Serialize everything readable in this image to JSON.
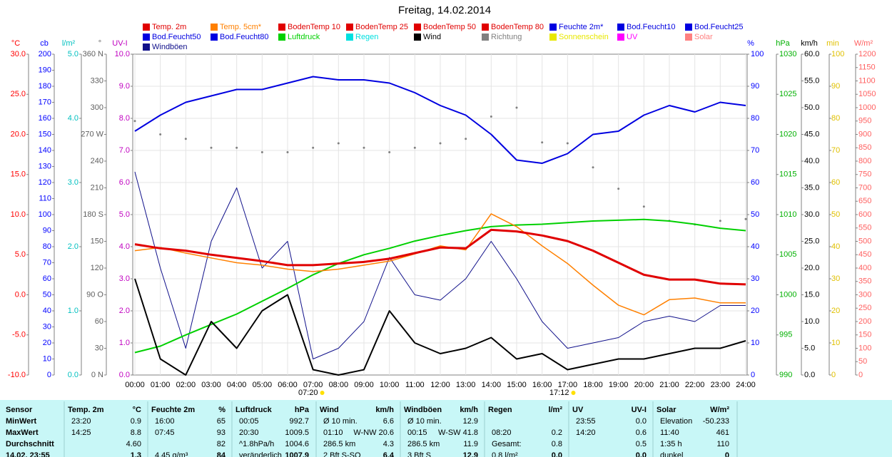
{
  "chart_data": {
    "type": "line",
    "title": "Freitag, 14.02.2014",
    "categories": [
      "00:00",
      "01:00",
      "02:00",
      "03:00",
      "04:00",
      "05:00",
      "06:00",
      "07:00",
      "08:00",
      "09:00",
      "10:00",
      "11:00",
      "12:00",
      "13:00",
      "14:00",
      "15:00",
      "16:00",
      "17:00",
      "18:00",
      "19:00",
      "20:00",
      "21:00",
      "22:00",
      "23:00",
      "24:00"
    ],
    "annotations": [
      "07:20",
      "17:12"
    ],
    "grid": true,
    "axes": [
      {
        "label": "°C",
        "side": "left",
        "color": "#ff0000",
        "ylim": [
          -10,
          30
        ],
        "yticks": [
          {
            "value": -10,
            "label": "-10.0"
          },
          {
            "value": -5,
            "label": "-5.0"
          },
          {
            "value": 0,
            "label": "0.0"
          },
          {
            "value": 5,
            "label": "5.0"
          },
          {
            "value": 10,
            "label": "10.0"
          },
          {
            "value": 15,
            "label": "15.0"
          },
          {
            "value": 20,
            "label": "20.0"
          },
          {
            "value": 25,
            "label": "25.0"
          },
          {
            "value": 30,
            "label": "30.0"
          }
        ]
      },
      {
        "label": "cb",
        "side": "left",
        "color": "#0000ff",
        "ylim": [
          0,
          200
        ],
        "yticks": [
          0,
          10,
          20,
          30,
          40,
          50,
          60,
          70,
          80,
          90,
          100,
          110,
          120,
          130,
          140,
          150,
          160,
          170,
          180,
          190,
          200
        ]
      },
      {
        "label": "l/m²",
        "side": "left",
        "color": "#00c0c0",
        "ylim": [
          0,
          5
        ],
        "yticks": [
          {
            "value": 0,
            "label": "0.0"
          },
          {
            "value": 1,
            "label": "1.0"
          },
          {
            "value": 2,
            "label": "2.0"
          },
          {
            "value": 3,
            "label": "3.0"
          },
          {
            "value": 4,
            "label": "4.0"
          },
          {
            "value": 5,
            "label": "5.0"
          }
        ]
      },
      {
        "label": "°",
        "side": "left",
        "color": "#606060",
        "ylim": [
          0,
          360
        ],
        "yticks": [
          {
            "value": 0,
            "label": "0 N"
          },
          30,
          60,
          {
            "value": 90,
            "label": "90 O"
          },
          120,
          150,
          {
            "value": 180,
            "label": "180 S"
          },
          210,
          240,
          {
            "value": 270,
            "label": "270 W"
          },
          300,
          330,
          {
            "value": 360,
            "label": "360 N"
          }
        ]
      },
      {
        "label": "UV-I",
        "side": "left",
        "color": "#c000c0",
        "ylim": [
          0,
          10
        ],
        "yticks": [
          {
            "value": 0,
            "label": "0.0"
          },
          {
            "value": 1,
            "label": "1.0"
          },
          {
            "value": 2,
            "label": "2.0"
          },
          {
            "value": 3,
            "label": "3.0"
          },
          {
            "value": 4,
            "label": "4.0"
          },
          {
            "value": 5,
            "label": "5.0"
          },
          {
            "value": 6,
            "label": "6.0"
          },
          {
            "value": 7,
            "label": "7.0"
          },
          {
            "value": 8,
            "label": "8.0"
          },
          {
            "value": 9,
            "label": "9.0"
          },
          {
            "value": 10,
            "label": "10.0"
          }
        ]
      },
      {
        "label": "%",
        "side": "right",
        "color": "#0000ff",
        "ylim": [
          0,
          100
        ],
        "yticks": [
          0,
          10,
          20,
          30,
          40,
          50,
          60,
          70,
          80,
          90,
          100
        ]
      },
      {
        "label": "hPa",
        "side": "right",
        "color": "#00b000",
        "ylim": [
          990,
          1030
        ],
        "yticks": [
          990,
          995,
          1000,
          1005,
          1010,
          1015,
          1020,
          1025,
          1030
        ]
      },
      {
        "label": "km/h",
        "side": "right",
        "color": "#000000",
        "ylim": [
          0,
          60
        ],
        "yticks": [
          {
            "value": 0,
            "label": "0.0"
          },
          {
            "value": 5,
            "label": "5.0"
          },
          {
            "value": 10,
            "label": "10.0"
          },
          {
            "value": 15,
            "label": "15.0"
          },
          {
            "value": 20,
            "label": "20.0"
          },
          {
            "value": 25,
            "label": "25.0"
          },
          {
            "value": 30,
            "label": "30.0"
          },
          {
            "value": 35,
            "label": "35.0"
          },
          {
            "value": 40,
            "label": "40.0"
          },
          {
            "value": 45,
            "label": "45.0"
          },
          {
            "value": 50,
            "label": "50.0"
          },
          {
            "value": 55,
            "label": "55.0"
          },
          {
            "value": 60,
            "label": "60.0"
          }
        ]
      },
      {
        "label": "min",
        "side": "right",
        "color": "#e0c000",
        "ylim": [
          0,
          100
        ],
        "yticks": [
          0,
          10,
          20,
          30,
          40,
          50,
          60,
          70,
          80,
          90,
          100
        ]
      },
      {
        "label": "W/m²",
        "side": "right",
        "color": "#ff6060",
        "ylim": [
          0,
          1200
        ],
        "yticks": [
          0,
          50,
          100,
          150,
          200,
          250,
          300,
          350,
          400,
          450,
          500,
          550,
          600,
          650,
          700,
          750,
          800,
          850,
          900,
          950,
          1000,
          1050,
          1100,
          1150,
          1200
        ]
      }
    ],
    "series": [
      {
        "name": "Temp. 2m",
        "color": "#e00000",
        "axis": "°C",
        "values": [
          6.3,
          5.8,
          5.5,
          5.0,
          4.6,
          4.2,
          3.7,
          3.7,
          3.9,
          4.1,
          4.5,
          5.2,
          5.9,
          5.8,
          8.1,
          7.9,
          7.4,
          6.7,
          5.5,
          4.0,
          2.5,
          1.9,
          1.9,
          1.4,
          1.3
        ]
      },
      {
        "name": "Temp. 5cm*",
        "color": "#ff8000",
        "axis": "°C",
        "values": [
          5.5,
          5.9,
          5.2,
          4.6,
          4.0,
          3.7,
          3.2,
          2.9,
          3.2,
          3.7,
          4.2,
          5.1,
          6.1,
          5.6,
          10.1,
          8.5,
          6.1,
          3.9,
          1.2,
          -1.3,
          -2.5,
          -0.6,
          -0.4,
          -1.0,
          -1.0
        ]
      },
      {
        "name": "BodenTemp 10",
        "color": "#e00000"
      },
      {
        "name": "BodenTemp 25",
        "color": "#e00000"
      },
      {
        "name": "BodenTemp 50",
        "color": "#e00000"
      },
      {
        "name": "BodenTemp 80",
        "color": "#e00000"
      },
      {
        "name": "Feuchte 2m*",
        "color": "#0000e0",
        "axis": "%",
        "values": [
          76,
          81,
          85,
          87,
          89,
          89,
          91,
          93,
          92,
          92,
          91,
          88,
          84,
          81,
          75,
          67,
          66,
          69,
          75,
          76,
          81,
          84,
          82,
          85,
          84
        ]
      },
      {
        "name": "Bod.Feucht10",
        "color": "#0000e0"
      },
      {
        "name": "Bod.Feucht25",
        "color": "#0000e0"
      },
      {
        "name": "Bod.Feucht50",
        "color": "#0000e0"
      },
      {
        "name": "Bod.Feucht80",
        "color": "#0000e0"
      },
      {
        "name": "Luftdruck",
        "color": "#00d000",
        "axis": "hPa",
        "values": [
          992.8,
          993.6,
          995.0,
          996.3,
          997.6,
          999.2,
          1000.8,
          1002.5,
          1003.9,
          1005.0,
          1005.8,
          1006.7,
          1007.4,
          1008.0,
          1008.5,
          1008.7,
          1008.8,
          1009.0,
          1009.2,
          1009.3,
          1009.4,
          1009.2,
          1008.8,
          1008.3,
          1008.0
        ]
      },
      {
        "name": "Regen",
        "color": "#00e0e0"
      },
      {
        "name": "Wind",
        "color": "#000000",
        "axis": "km/h",
        "values": [
          18,
          3,
          0,
          10,
          5,
          12,
          15,
          1,
          0,
          1,
          12,
          6,
          4,
          5,
          7,
          3,
          4,
          1,
          2,
          3,
          3,
          4,
          5,
          5,
          6.4
        ]
      },
      {
        "name": "Richtung",
        "color": "#808080",
        "axis": "°",
        "style": "dots",
        "values": [
          285,
          270,
          265,
          255,
          255,
          250,
          250,
          255,
          260,
          255,
          250,
          255,
          260,
          265,
          290,
          300,
          261,
          260,
          233,
          209,
          189,
          173,
          169,
          173,
          175
        ]
      },
      {
        "name": "Sonnenschein",
        "color": "#e8e800"
      },
      {
        "name": "UV",
        "color": "#ff00ff"
      },
      {
        "name": "Solar",
        "color": "#ff8080"
      },
      {
        "name": "Windböen",
        "color": "#10108a",
        "axis": "km/h",
        "values": [
          38,
          20,
          5,
          25,
          35,
          20,
          25,
          3,
          5,
          10,
          22,
          15,
          14,
          18,
          25,
          18,
          10,
          5,
          6,
          7,
          10,
          11,
          10,
          13,
          13
        ]
      }
    ]
  },
  "table": {
    "header": [
      "Sensor",
      "Temp. 2m",
      "°C",
      "Feuchte 2m",
      "%",
      "Luftdruck",
      "hPa",
      "Wind",
      "km/h",
      "Windböen",
      "km/h",
      "Regen",
      "l/m²",
      "UV",
      "UV-I",
      "Solar",
      "W/m²"
    ],
    "rows": [
      [
        "MinWert",
        "23:20",
        "0.9",
        "16:00",
        "65",
        "00:05",
        "992.7",
        "Ø 10 min.",
        "6.6",
        "Ø 10 min.",
        "12.9",
        null,
        null,
        "23:55",
        "0.0",
        "Elevation",
        "-50.233"
      ],
      [
        "MaxWert",
        "14:25",
        "8.8",
        "07:45",
        "93",
        "20:30",
        "1009.5",
        "01:10",
        "W-NW 20.6",
        "00:15",
        "W-SW 41.8",
        "08:20",
        "0.2",
        "14:20",
        "0.6",
        "11:40",
        "461"
      ],
      [
        "Durchschnitt",
        null,
        "4.60",
        null,
        "82",
        "^1.8hPa/h",
        "1004.6",
        "286.5 km",
        "4.3",
        "286.5 km",
        "11.9",
        "Gesamt:",
        "0.8",
        null,
        "0.5",
        "1:35 h",
        "110"
      ],
      [
        "14.02. 23:55",
        null,
        "1.3",
        "4.45 g/m³",
        "84",
        "veränderlich",
        "1007.9",
        "2 Bft S-SO",
        "6.4",
        "3 Bft S",
        "12.9",
        "0.8 l/m²",
        "0.0",
        null,
        "0.0",
        "dunkel",
        "0"
      ]
    ]
  }
}
